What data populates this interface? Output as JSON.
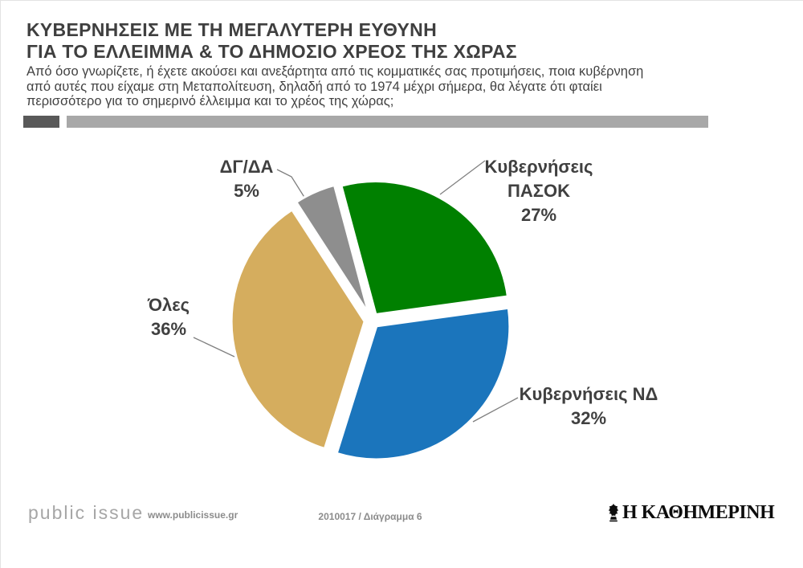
{
  "header": {
    "title_lines": [
      "ΚΥΒΕΡΝΗΣΕΙΣ ΜΕ ΤΗ ΜΕΓΑΛΥΤΕΡΗ ΕΥΘΥΝΗ",
      "ΓΙΑ ΤΟ ΕΛΛΕΙΜΜΑ & ΤΟ ΔΗΜΟΣΙΟ ΧΡΕΟΣ ΤΗΣ ΧΩΡΑΣ"
    ],
    "question_lines": [
      "Από όσο γνωρίζετε, ή έχετε ακούσει και ανεξάρτητα από τις κομματικές σας προτιμήσεις, ποια κυβέρνηση",
      "από αυτές που είχαμε στη Μεταπολίτευση, δηλαδή από το 1974 μέχρι σήμερα, θα λέγατε ότι φταίει",
      "περισσότερο για το σημερινό έλλειμμα και το χρέος της χώρας;"
    ]
  },
  "chart_data": {
    "type": "pie",
    "title": "ΚΥΒΕΡΝΗΣΕΙΣ ΜΕ ΤΗ ΜΕΓΑΛΥΤΕΡΗ ΕΥΘΥΝΗ ΓΙΑ ΤΟ ΕΛΛΕΙΜΜΑ & ΤΟ ΔΗΜΟΣΙΟ ΧΡΕΟΣ ΤΗΣ ΧΩΡΑΣ",
    "unit": "%",
    "slices": [
      {
        "label": "Κυβερνήσεις ΠΑΣΟΚ",
        "value": 27,
        "color": "#008000"
      },
      {
        "label": "Κυβερνήσεις ΝΔ",
        "value": 32,
        "color": "#1b75bc"
      },
      {
        "label": "Όλες",
        "value": 36,
        "color": "#d5ad5e"
      },
      {
        "label": "ΔΓ/ΔΑ",
        "value": 5,
        "color": "#8e8e8e"
      }
    ],
    "start_angle_deg": -15,
    "clockwise": true,
    "exploded": true,
    "legend_position": "callouts"
  },
  "callouts": {
    "pasok": {
      "lines": [
        "Κυβερνήσεις",
        "ΠΑΣΟΚ",
        "27%"
      ]
    },
    "dgda": {
      "lines": [
        "ΔΓ/ΔΑ",
        "5%"
      ]
    },
    "oles": {
      "lines": [
        "Όλες",
        "36%"
      ]
    },
    "nd": {
      "lines": [
        "Κυβερνήσεις ΝΔ",
        "32%"
      ]
    }
  },
  "footer": {
    "brand": "public issue",
    "website": "www.publicissue.gr",
    "chart_code": "2010017 / Διάγραμμα 6",
    "newspaper": "Η ΚΑΘΗΜΕΡΙΝΗ"
  },
  "colors": {
    "title_text": "#3f3f3f",
    "label_text": "#404040",
    "divider_dark": "#595959",
    "divider_light": "#a8a8a8",
    "leader_line": "#7f7f7f",
    "footer_text": "#8c8c8c"
  }
}
